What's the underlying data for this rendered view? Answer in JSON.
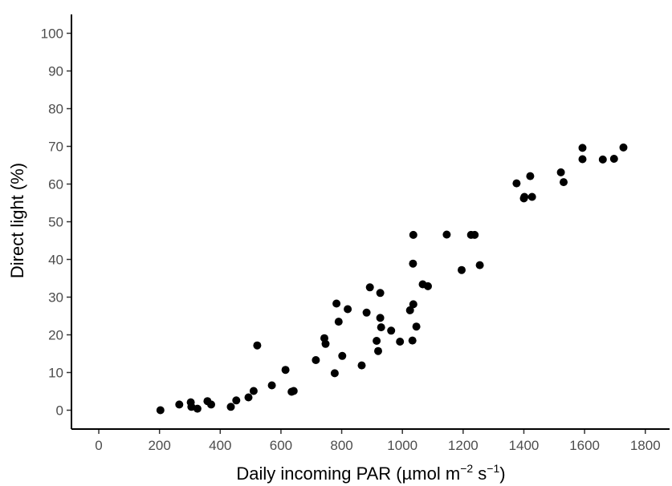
{
  "chart_data": {
    "type": "scatter",
    "title": "",
    "xlabel": {
      "prefix": "Daily incoming PAR (µmol m",
      "sup1": "−2",
      "middle": " s",
      "sup2": "−1",
      "suffix": ")"
    },
    "ylabel": "Direct light (%)",
    "xlim": [
      -90,
      1880
    ],
    "ylim": [
      -5,
      105
    ],
    "xticks": [
      0,
      200,
      400,
      600,
      800,
      1000,
      1200,
      1400,
      1600,
      1800
    ],
    "yticks": [
      0,
      10,
      20,
      30,
      40,
      50,
      60,
      70,
      80,
      90,
      100
    ],
    "grid": false,
    "legend": "none",
    "point_color": "#000000",
    "points": [
      [
        203,
        0.0
      ],
      [
        265,
        1.5
      ],
      [
        303,
        2.1
      ],
      [
        305,
        0.9
      ],
      [
        325,
        0.4
      ],
      [
        358,
        2.4
      ],
      [
        370,
        1.5
      ],
      [
        435,
        0.9
      ],
      [
        453,
        2.6
      ],
      [
        493,
        3.4
      ],
      [
        510,
        5.1
      ],
      [
        522,
        17.2
      ],
      [
        570,
        6.6
      ],
      [
        615,
        10.7
      ],
      [
        635,
        4.9
      ],
      [
        642,
        5.1
      ],
      [
        715,
        13.3
      ],
      [
        743,
        19.1
      ],
      [
        747,
        17.6
      ],
      [
        777,
        9.8
      ],
      [
        783,
        28.3
      ],
      [
        790,
        23.5
      ],
      [
        802,
        14.4
      ],
      [
        820,
        26.8
      ],
      [
        866,
        11.9
      ],
      [
        882,
        25.9
      ],
      [
        893,
        32.6
      ],
      [
        915,
        18.4
      ],
      [
        920,
        15.7
      ],
      [
        927,
        31.1
      ],
      [
        927,
        24.5
      ],
      [
        930,
        22.0
      ],
      [
        963,
        21.1
      ],
      [
        992,
        18.2
      ],
      [
        1025,
        26.5
      ],
      [
        1033,
        18.5
      ],
      [
        1035,
        38.9
      ],
      [
        1036,
        28.1
      ],
      [
        1036,
        46.5
      ],
      [
        1046,
        22.2
      ],
      [
        1067,
        33.4
      ],
      [
        1084,
        32.9
      ],
      [
        1146,
        46.6
      ],
      [
        1195,
        37.2
      ],
      [
        1226,
        46.5
      ],
      [
        1238,
        46.5
      ],
      [
        1255,
        38.5
      ],
      [
        1376,
        60.2
      ],
      [
        1400,
        56.2
      ],
      [
        1402,
        56.6
      ],
      [
        1421,
        62.1
      ],
      [
        1427,
        56.6
      ],
      [
        1522,
        63.1
      ],
      [
        1531,
        60.5
      ],
      [
        1593,
        69.6
      ],
      [
        1593,
        66.6
      ],
      [
        1660,
        66.5
      ],
      [
        1697,
        66.7
      ],
      [
        1728,
        69.7
      ]
    ]
  }
}
